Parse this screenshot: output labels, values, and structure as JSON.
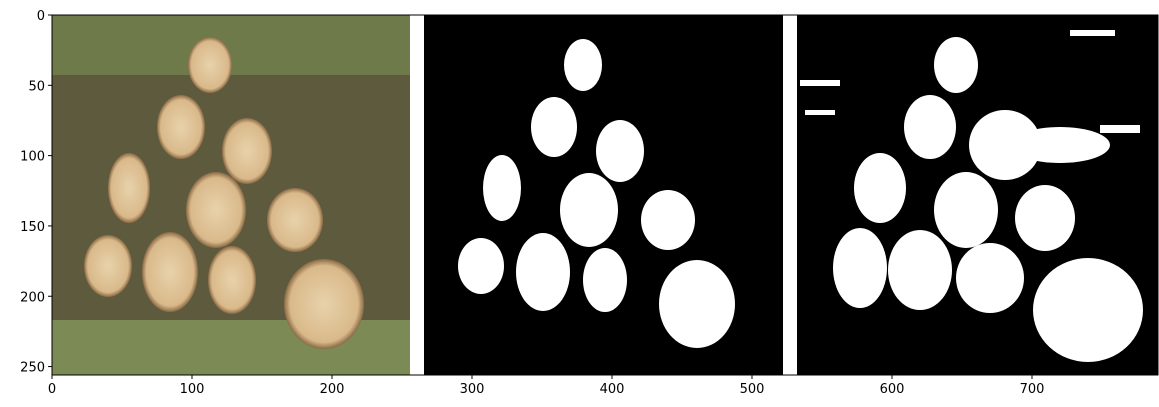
{
  "chart_data": {
    "type": "image",
    "xlim": [
      0,
      790
    ],
    "ylim": [
      256,
      0
    ],
    "xticks": [
      0,
      100,
      200,
      300,
      400,
      500,
      600,
      700
    ],
    "yticks": [
      0,
      50,
      100,
      150,
      200,
      250
    ]
  }
}
